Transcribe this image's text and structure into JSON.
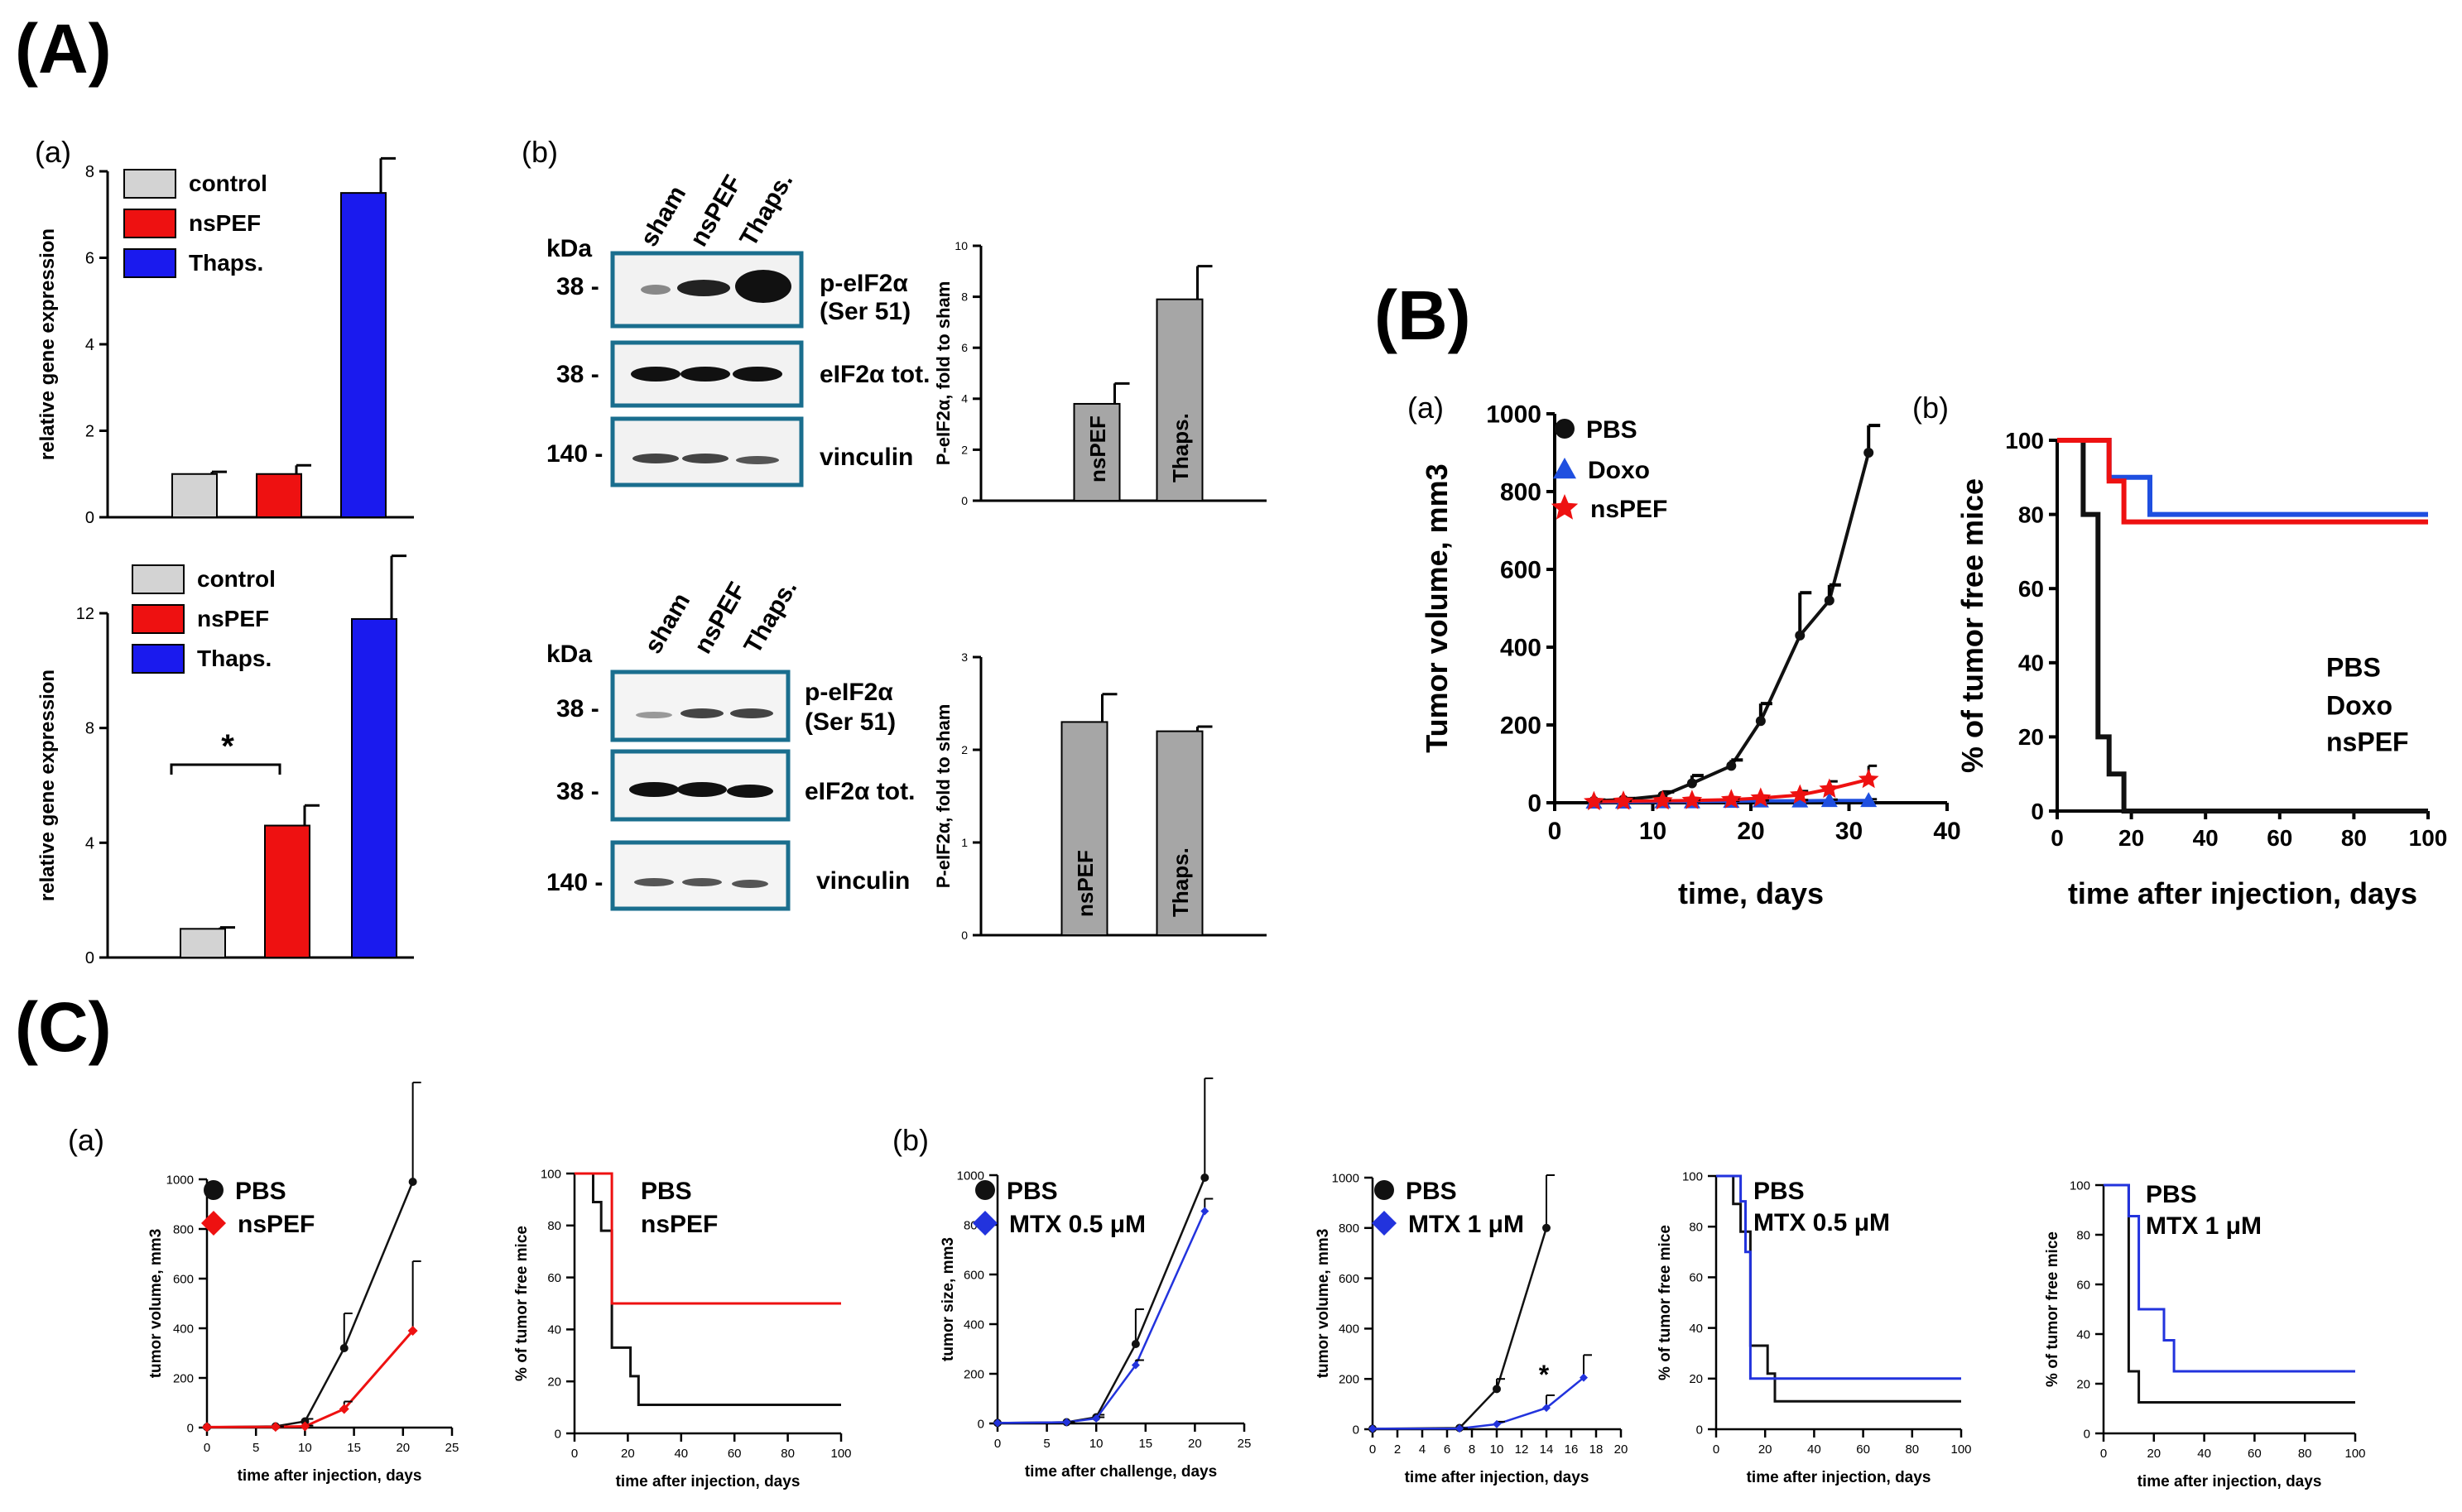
{
  "panel_labels": {
    "A": "(A)",
    "B": "(B)",
    "C": "(C)"
  },
  "subpanel_labels": {
    "a": "(a)",
    "b": "(b)"
  },
  "colors": {
    "control": "#d3d3d3",
    "nspef": "#ee1111",
    "thaps": "#1a1aee",
    "pbs": "#111111",
    "doxo": "#1f4fe0",
    "mtx": "#2233dd",
    "wb_border": "#1a6e8e",
    "bar_gray": "#a6a6a6"
  },
  "western": {
    "kda_label": "kDa",
    "lane_labels": [
      "sham",
      "nsPEF",
      "Thaps."
    ],
    "mw": [
      "38 -",
      "38 -",
      "140 -"
    ],
    "bands": [
      "p-eIF2α",
      "(Ser 51)",
      "eIF2α tot.",
      "vinculin"
    ]
  },
  "chart_data": [
    {
      "id": "A-a-top",
      "type": "bar",
      "categories": [
        "control",
        "nsPEF",
        "Thaps."
      ],
      "values": [
        1.0,
        1.0,
        7.5
      ],
      "errors": [
        0.05,
        0.2,
        0.8
      ],
      "ylabel": "relative gene expression",
      "ylim": [
        0,
        8
      ],
      "yticks": [
        "0",
        "2",
        "4",
        "6",
        "8"
      ],
      "legend": [
        "control",
        "nsPEF",
        "Thaps."
      ]
    },
    {
      "id": "A-a-bottom",
      "type": "bar",
      "categories": [
        "control",
        "nsPEF",
        "Thaps."
      ],
      "values": [
        1.0,
        4.6,
        11.8
      ],
      "errors": [
        0.05,
        0.7,
        2.2
      ],
      "ylabel": "relative gene expression",
      "ylim": [
        0,
        12
      ],
      "yticks": [
        "0",
        "4",
        "8",
        "12"
      ],
      "legend": [
        "control",
        "nsPEF",
        "Thaps."
      ],
      "annotation": "*"
    },
    {
      "id": "A-b-top",
      "type": "bar",
      "categories": [
        "nsPEF",
        "Thaps."
      ],
      "values": [
        3.8,
        7.9
      ],
      "errors": [
        0.8,
        1.3
      ],
      "ylabel": "P-eIF2α, fold to sham",
      "ylim": [
        0,
        10
      ],
      "yticks": [
        "0",
        "2",
        "4",
        "6",
        "8",
        "10"
      ]
    },
    {
      "id": "A-b-bottom",
      "type": "bar",
      "categories": [
        "nsPEF",
        "Thaps."
      ],
      "values": [
        2.3,
        2.2
      ],
      "errors": [
        0.3,
        0.05
      ],
      "ylabel": "P-eIF2α, fold to sham",
      "ylim": [
        0,
        3
      ],
      "yticks": [
        "0",
        "1",
        "2",
        "3"
      ]
    },
    {
      "id": "B-a",
      "type": "line",
      "xlabel": "time, days",
      "ylabel": "Tumor volume, mm3",
      "xlim": [
        0,
        40
      ],
      "ylim": [
        0,
        1000
      ],
      "xticks": [
        "0",
        "10",
        "20",
        "30",
        "40"
      ],
      "yticks": [
        "0",
        "200",
        "400",
        "600",
        "800",
        "1000"
      ],
      "series": [
        {
          "name": "PBS",
          "x": [
            4,
            7,
            11,
            14,
            18,
            21,
            25,
            28,
            32
          ],
          "y": [
            5,
            8,
            18,
            50,
            95,
            210,
            430,
            520,
            900
          ],
          "err": [
            2,
            3,
            10,
            20,
            15,
            45,
            110,
            40,
            70
          ]
        },
        {
          "name": "Doxo",
          "x": [
            4,
            7,
            11,
            14,
            18,
            21,
            25,
            28,
            32
          ],
          "y": [
            2,
            2,
            3,
            3,
            4,
            5,
            5,
            6,
            6
          ],
          "err": [
            1,
            1,
            1,
            1,
            1,
            1,
            2,
            2,
            3
          ]
        },
        {
          "name": "nsPEF",
          "x": [
            4,
            7,
            11,
            14,
            18,
            21,
            25,
            28,
            32
          ],
          "y": [
            3,
            4,
            5,
            6,
            8,
            12,
            20,
            35,
            60
          ],
          "err": [
            1,
            1,
            2,
            2,
            3,
            5,
            10,
            20,
            35
          ]
        }
      ]
    },
    {
      "id": "B-b",
      "type": "line",
      "step": true,
      "xlabel": "time after injection, days",
      "ylabel": "% of tumor free mice",
      "xlim": [
        0,
        100
      ],
      "ylim": [
        0,
        100
      ],
      "xticks": [
        "0",
        "20",
        "40",
        "60",
        "80",
        "100"
      ],
      "yticks": [
        "0",
        "20",
        "40",
        "60",
        "80",
        "100"
      ],
      "series": [
        {
          "name": "PBS",
          "x": [
            0,
            7,
            7,
            11,
            11,
            14,
            14,
            18,
            18,
            100
          ],
          "y": [
            100,
            100,
            80,
            80,
            20,
            20,
            10,
            10,
            0,
            0
          ]
        },
        {
          "name": "Doxo",
          "x": [
            0,
            14,
            14,
            21,
            21,
            25,
            25,
            100
          ],
          "y": [
            100,
            100,
            90,
            90,
            90,
            90,
            80,
            80
          ]
        },
        {
          "name": "nsPEF",
          "x": [
            0,
            14,
            14,
            18,
            18,
            100
          ],
          "y": [
            100,
            100,
            89,
            89,
            78,
            78
          ]
        }
      ]
    },
    {
      "id": "C-a-1",
      "type": "line",
      "xlabel": "time after injection, days",
      "ylabel": "tumor volume, mm3",
      "xlim": [
        0,
        25
      ],
      "ylim": [
        0,
        1000
      ],
      "xticks": [
        "0",
        "5",
        "10",
        "15",
        "20",
        "25"
      ],
      "yticks": [
        "0",
        "200",
        "400",
        "600",
        "800",
        "1000"
      ],
      "series": [
        {
          "name": "PBS",
          "x": [
            0,
            7,
            10,
            14,
            21
          ],
          "y": [
            2,
            5,
            25,
            320,
            990
          ],
          "err": [
            0,
            2,
            10,
            140,
            400
          ]
        },
        {
          "name": "nsPEF",
          "x": [
            0,
            7,
            10,
            14,
            21
          ],
          "y": [
            2,
            3,
            5,
            75,
            390
          ],
          "err": [
            0,
            1,
            3,
            30,
            280
          ]
        }
      ]
    },
    {
      "id": "C-a-2",
      "type": "line",
      "step": true,
      "xlabel": "time after injection, days",
      "ylabel": "% of tumor free mice",
      "xlim": [
        0,
        100
      ],
      "ylim": [
        0,
        100
      ],
      "xticks": [
        "0",
        "20",
        "40",
        "60",
        "80",
        "100"
      ],
      "yticks": [
        "0",
        "20",
        "40",
        "60",
        "80",
        "100"
      ],
      "series": [
        {
          "name": "PBS",
          "x": [
            0,
            7,
            7,
            10,
            10,
            14,
            14,
            21,
            21,
            24,
            24,
            100
          ],
          "y": [
            100,
            100,
            89,
            89,
            78,
            78,
            33,
            33,
            22,
            22,
            11,
            11
          ]
        },
        {
          "name": "nsPEF",
          "x": [
            0,
            14,
            14,
            100
          ],
          "y": [
            100,
            100,
            50,
            50
          ]
        }
      ]
    },
    {
      "id": "C-b-1",
      "type": "line",
      "xlabel": "time after challenge, days",
      "ylabel": "tumor size, mm3",
      "xlim": [
        0,
        25
      ],
      "ylim": [
        0,
        1000
      ],
      "xticks": [
        "0",
        "5",
        "10",
        "15",
        "20",
        "25"
      ],
      "yticks": [
        "0",
        "200",
        "400",
        "600",
        "800",
        "1000"
      ],
      "series": [
        {
          "name": "PBS",
          "x": [
            0,
            7,
            10,
            14,
            21
          ],
          "y": [
            2,
            5,
            25,
            320,
            990
          ],
          "err": [
            0,
            2,
            10,
            140,
            400
          ]
        },
        {
          "name": "MTX 0.5 μM",
          "x": [
            0,
            7,
            10,
            14,
            21
          ],
          "y": [
            2,
            5,
            20,
            235,
            855
          ],
          "err": [
            0,
            1,
            5,
            20,
            50
          ]
        }
      ]
    },
    {
      "id": "C-b-2",
      "type": "line",
      "xlabel": "time after injection, days",
      "ylabel": "tumor volume, mm3",
      "xlim": [
        0,
        20
      ],
      "ylim": [
        0,
        1000
      ],
      "xticks": [
        "0",
        "2",
        "4",
        "6",
        "8",
        "10",
        "12",
        "14",
        "16",
        "18",
        "20"
      ],
      "yticks": [
        "0",
        "200",
        "400",
        "600",
        "800",
        "1000"
      ],
      "annotation": "*",
      "series": [
        {
          "name": "PBS",
          "x": [
            0,
            7,
            10,
            14
          ],
          "y": [
            2,
            5,
            160,
            800
          ],
          "err": [
            0,
            2,
            40,
            210
          ]
        },
        {
          "name": "MTX 1 μM",
          "x": [
            0,
            7,
            10,
            14,
            17
          ],
          "y": [
            2,
            3,
            20,
            85,
            205
          ],
          "err": [
            0,
            1,
            10,
            50,
            90
          ]
        }
      ]
    },
    {
      "id": "C-b-3",
      "type": "line",
      "step": true,
      "xlabel": "time after injection, days",
      "ylabel": "% of tumor free mice",
      "xlim": [
        0,
        100
      ],
      "ylim": [
        0,
        100
      ],
      "xticks": [
        "0",
        "20",
        "40",
        "60",
        "80",
        "100"
      ],
      "yticks": [
        "0",
        "20",
        "40",
        "60",
        "80",
        "100"
      ],
      "series": [
        {
          "name": "PBS",
          "x": [
            0,
            7,
            7,
            10,
            10,
            14,
            14,
            21,
            21,
            24,
            24,
            100
          ],
          "y": [
            100,
            100,
            89,
            89,
            78,
            78,
            33,
            33,
            22,
            22,
            11,
            11
          ]
        },
        {
          "name": "MTX 0.5 μM",
          "x": [
            0,
            10,
            10,
            12,
            12,
            14,
            14,
            100
          ],
          "y": [
            100,
            100,
            90,
            90,
            70,
            70,
            20,
            20
          ]
        }
      ]
    },
    {
      "id": "C-b-4",
      "type": "line",
      "step": true,
      "xlabel": "time after injection, days",
      "ylabel": "% of tumor free mice",
      "xlim": [
        0,
        100
      ],
      "ylim": [
        0,
        100
      ],
      "xticks": [
        "0",
        "20",
        "40",
        "60",
        "80",
        "100"
      ],
      "yticks": [
        "0",
        "20",
        "40",
        "60",
        "80",
        "100"
      ],
      "series": [
        {
          "name": "PBS",
          "x": [
            0,
            10,
            10,
            14,
            14,
            100
          ],
          "y": [
            100,
            100,
            25,
            25,
            12.5,
            12.5
          ]
        },
        {
          "name": "MTX 1 μM",
          "x": [
            0,
            10,
            10,
            14,
            14,
            24,
            24,
            28,
            28,
            100
          ],
          "y": [
            100,
            100,
            87.5,
            87.5,
            50,
            50,
            37.5,
            37.5,
            25,
            25
          ]
        }
      ]
    }
  ]
}
